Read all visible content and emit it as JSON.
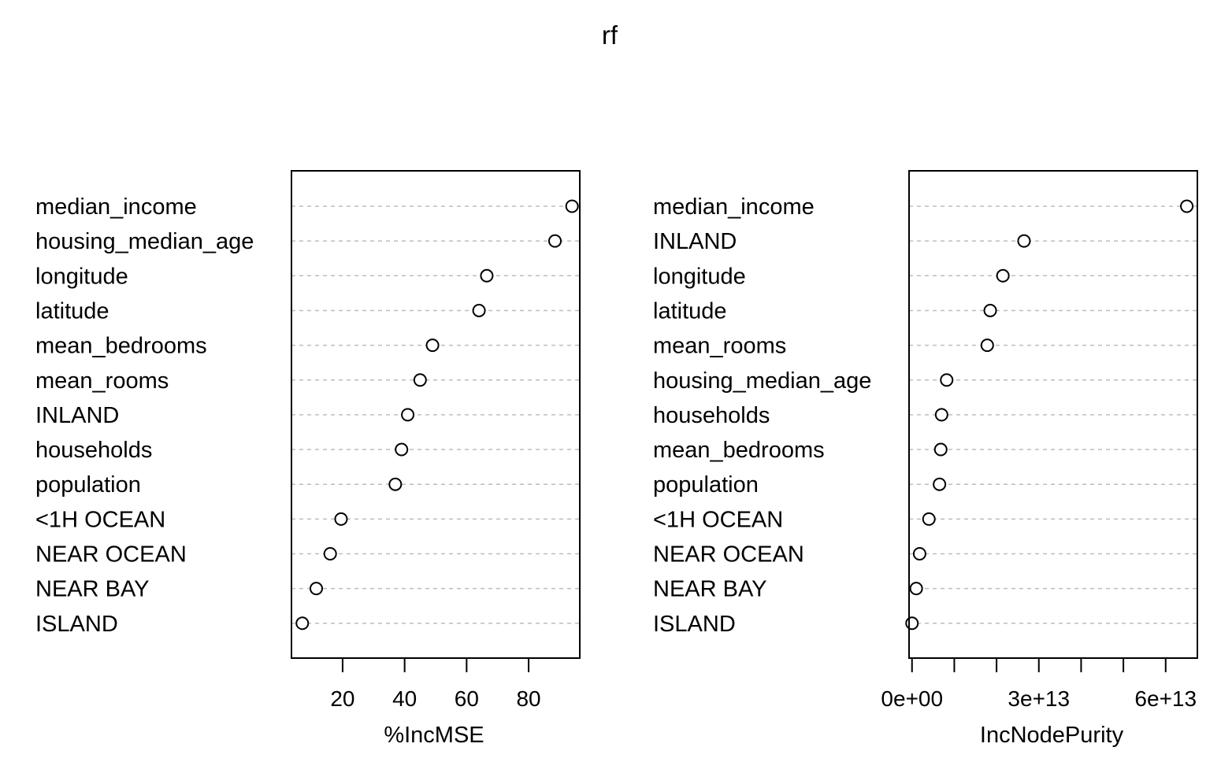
{
  "chart_data": {
    "title": "rf",
    "panels": [
      {
        "type": "scatter",
        "xlabel": "%IncMSE",
        "xlim": [
          3.5,
          96.5
        ],
        "ticks": [
          20,
          40,
          60,
          80
        ],
        "tick_labels": [
          "20",
          "40",
          "60",
          "80"
        ],
        "labels": [
          "median_income",
          "housing_median_age",
          "longitude",
          "latitude",
          "mean_bedrooms",
          "mean_rooms",
          "INLAND",
          "households",
          "population",
          "<1H OCEAN",
          "NEAR OCEAN",
          "NEAR BAY",
          "ISLAND"
        ],
        "values": [
          94.0,
          88.5,
          66.5,
          64.0,
          49.0,
          45.0,
          41.0,
          39.0,
          37.0,
          19.5,
          16.0,
          11.5,
          7.0
        ]
      },
      {
        "type": "scatter",
        "xlabel": "IncNodePurity",
        "xlim": [
          -700000000000.0,
          67500000000000.0
        ],
        "ticks": [
          0,
          10000000000000.0,
          20000000000000.0,
          30000000000000.0,
          40000000000000.0,
          50000000000000.0,
          60000000000000.0
        ],
        "tick_labels": [
          "0e+00",
          "",
          "",
          "3e+13",
          "",
          "",
          "6e+13"
        ],
        "labels": [
          "median_income",
          "INLAND",
          "longitude",
          "latitude",
          "mean_rooms",
          "housing_median_age",
          "households",
          "mean_bedrooms",
          "population",
          "<1H OCEAN",
          "NEAR OCEAN",
          "NEAR BAY",
          "ISLAND"
        ],
        "values": [
          65000000000000.0,
          26500000000000.0,
          21500000000000.0,
          18500000000000.0,
          17800000000000.0,
          8200000000000.0,
          7000000000000.0,
          6800000000000.0,
          6500000000000.0,
          4000000000000.0,
          1800000000000.0,
          1000000000000.0,
          0
        ]
      }
    ]
  }
}
